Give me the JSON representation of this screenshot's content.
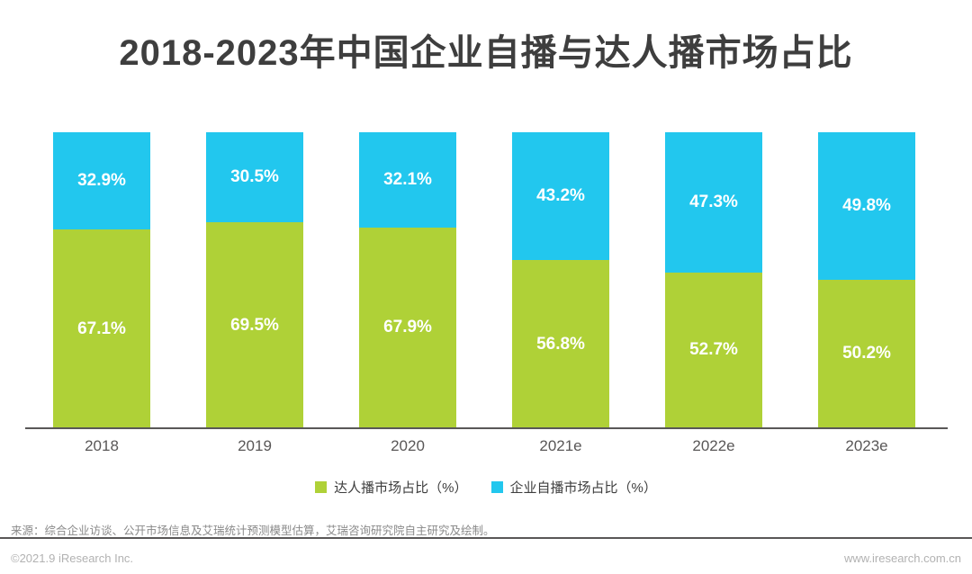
{
  "title": "2018-2023年中国企业自播与达人播市场占比",
  "chart_data": {
    "type": "bar",
    "stacked": true,
    "percent_stacked": true,
    "categories": [
      "2018",
      "2019",
      "2020",
      "2021e",
      "2022e",
      "2023e"
    ],
    "series": [
      {
        "name": "达人播市场占比（%）",
        "color": "#afd137",
        "values": [
          67.1,
          69.5,
          67.9,
          56.8,
          52.7,
          50.2
        ]
      },
      {
        "name": "企业自播市场占比（%）",
        "color": "#22c7ee",
        "values": [
          32.9,
          30.5,
          32.1,
          43.2,
          47.3,
          49.8
        ]
      }
    ],
    "title": "2018-2023年中国企业自播与达人播市场占比",
    "xlabel": "",
    "ylabel": "",
    "ylim": [
      0,
      100
    ],
    "grid": false,
    "legend_position": "bottom",
    "value_suffix": "%",
    "value_label_color": "#ffffff"
  },
  "footer": {
    "source": "来源：综合企业访谈、公开市场信息及艾瑞统计预测模型估算，艾瑞咨询研究院自主研究及绘制。",
    "copyright": "©2021.9 iResearch Inc.",
    "website": "www.iresearch.com.cn"
  }
}
